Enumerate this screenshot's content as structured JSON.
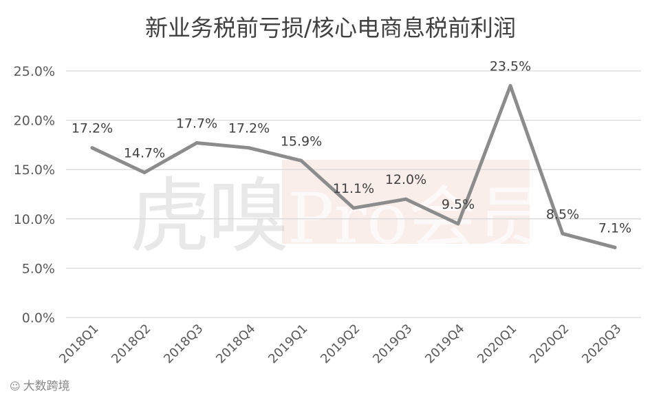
{
  "chart_data": {
    "type": "line",
    "title": "新业务税前亏损/核心电商息税前利润",
    "categories": [
      "2018Q1",
      "2018Q2",
      "2018Q3",
      "2018Q4",
      "2019Q1",
      "2019Q2",
      "2019Q3",
      "2019Q4",
      "2020Q1",
      "2020Q2",
      "2020Q3"
    ],
    "values": [
      17.2,
      14.7,
      17.7,
      17.2,
      15.9,
      11.1,
      12.0,
      9.5,
      23.5,
      8.5,
      7.1
    ],
    "data_labels": [
      "17.2%",
      "14.7%",
      "17.7%",
      "17.2%",
      "15.9%",
      "11.1%",
      "12.0%",
      "9.5%",
      "23.5%",
      "8.5%",
      "7.1%"
    ],
    "ylim": [
      0,
      25
    ],
    "yticks": [
      0,
      5,
      10,
      15,
      20,
      25
    ],
    "ytick_labels": [
      "0.0%",
      "5.0%",
      "10.0%",
      "15.0%",
      "20.0%",
      "25.0%"
    ],
    "grid": true,
    "line_color": "#8c8c8c"
  },
  "watermark": {
    "left_text": "虎嗅",
    "right_text": "Pro会员"
  },
  "footer": {
    "icon": "wechat-icon",
    "text": "大数跨境"
  }
}
